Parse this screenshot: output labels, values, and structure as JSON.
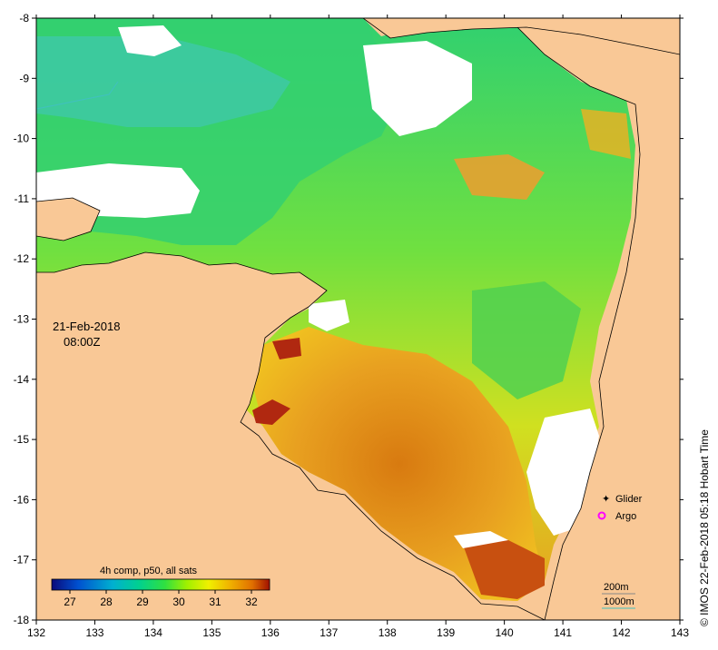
{
  "map": {
    "date": "21-Feb-2018",
    "time": "08:00Z",
    "credit": "© IMOS 22-Feb-2018 05:18 Hobart Time",
    "colors": {
      "land": "#f9c896",
      "no_data": "#ffffff",
      "frame": "#000000"
    }
  },
  "axes": {
    "lon_ticks": [
      "132",
      "133",
      "134",
      "135",
      "136",
      "137",
      "138",
      "139",
      "140",
      "141",
      "142",
      "143"
    ],
    "lat_ticks": [
      "-8",
      "-9",
      "-10",
      "-11",
      "-12",
      "-13",
      "-14",
      "-15",
      "-16",
      "-17",
      "-18"
    ]
  },
  "colorbar": {
    "title": "4h comp, p50, all sats",
    "ticks": [
      "27",
      "28",
      "29",
      "30",
      "31",
      "32"
    ],
    "min": 26.5,
    "max": 32.5,
    "stops": [
      "#0a0a7a",
      "#0050d0",
      "#00b0d0",
      "#00d090",
      "#30e040",
      "#a0f000",
      "#f0f000",
      "#f0b000",
      "#e07000",
      "#a01000"
    ]
  },
  "platforms": {
    "glider_label": "Glider",
    "argo_label": "Argo",
    "glider_color": "#ff00ff",
    "argo_color": "#ff00ff"
  },
  "depth_legend": {
    "label_200": "200m",
    "label_1000": "1000m",
    "line_200_color": "#888888",
    "line_1000_color": "#40c0c0"
  }
}
